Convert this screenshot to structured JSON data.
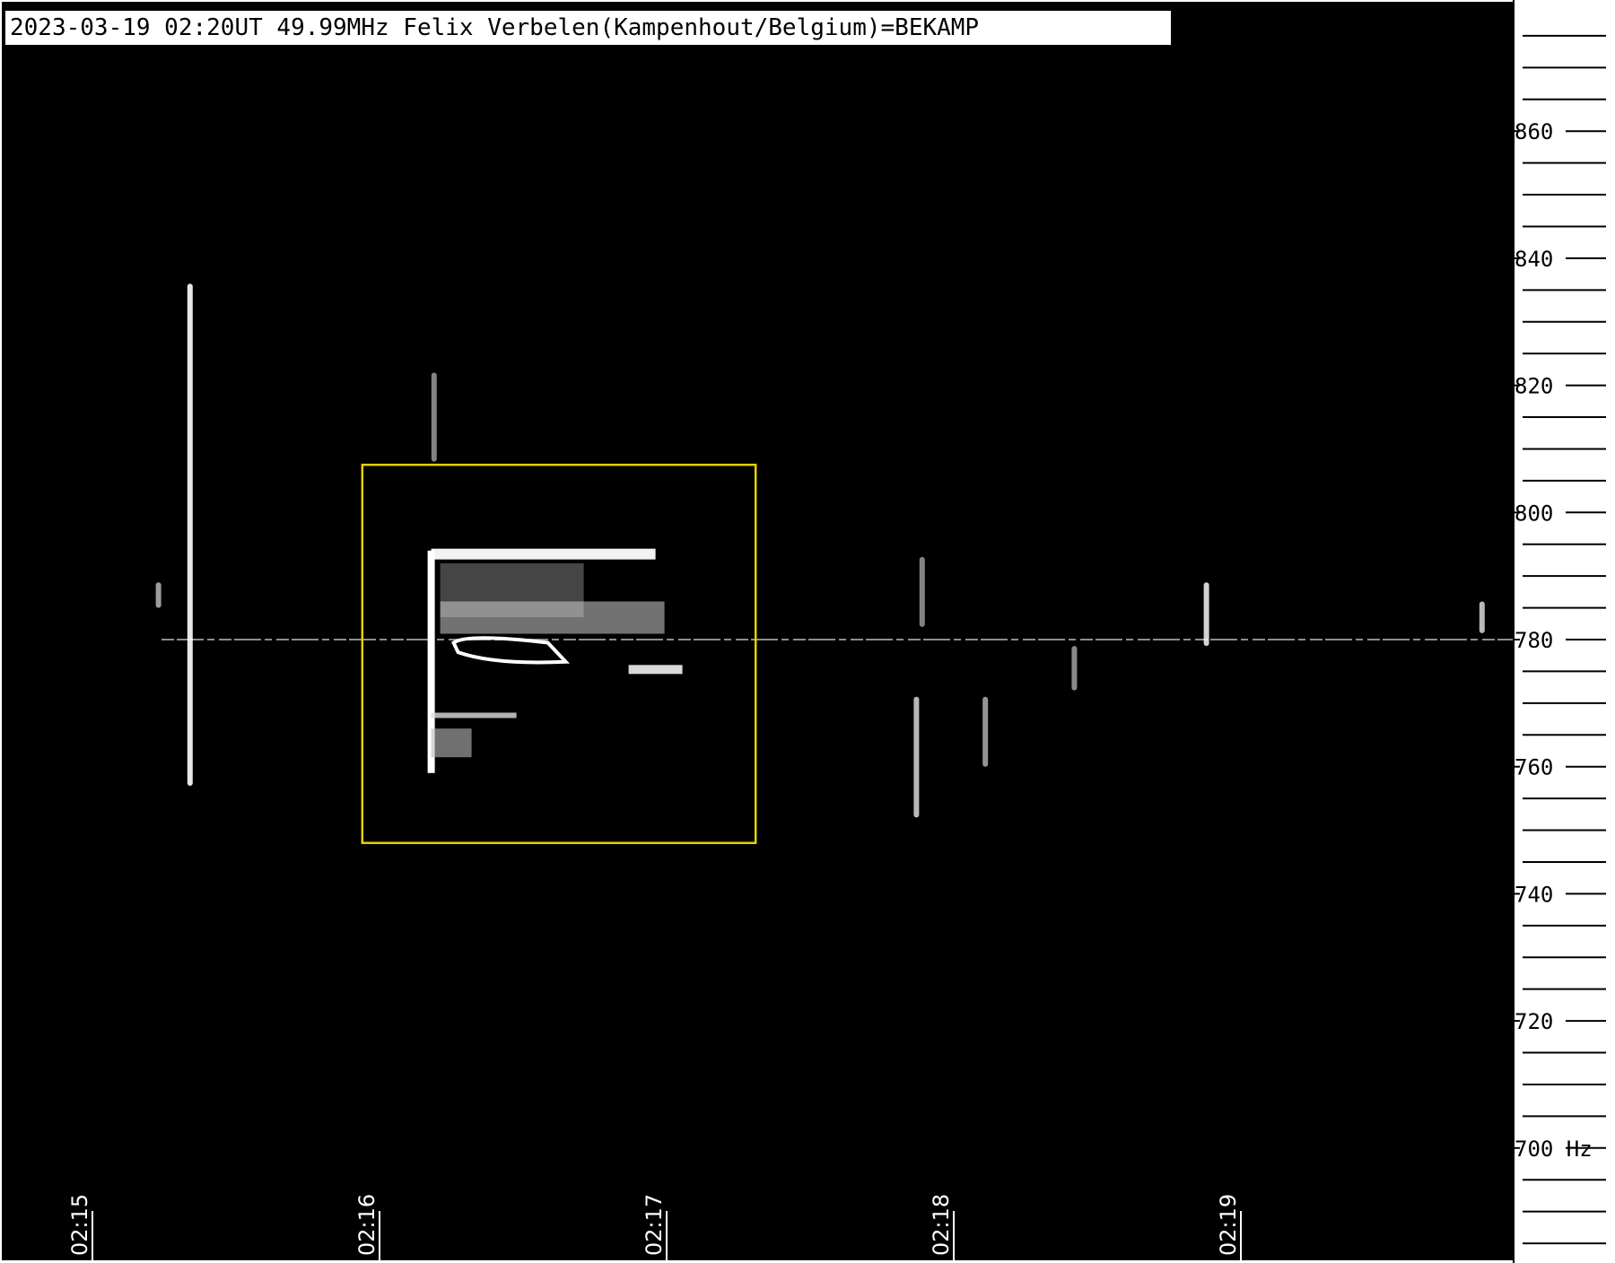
{
  "chart_data": {
    "type": "heatmap",
    "title": "2023-03-19 02:20UT 49.99MHz Felix Verbelen(Kampenhout/Belgium)=BEKAMP",
    "xlabel": "",
    "ylabel": "Hz",
    "y_unit": "Hz",
    "y_ticks": [
      860,
      840,
      820,
      800,
      780,
      760,
      740,
      720,
      700
    ],
    "y_tick_labels": [
      "860",
      "840",
      "820",
      "800",
      "780",
      "760",
      "740",
      "720",
      "700 Hz"
    ],
    "y_minor_step": 5,
    "ylim": [
      680,
      877.5
    ],
    "x_ticks": [
      "02:15",
      "02:16",
      "02:17",
      "02:18",
      "02:19"
    ],
    "x_tick_minutes": [
      15,
      16,
      17,
      18,
      19
    ],
    "xlim_minutes": [
      14.9,
      20.1
    ],
    "carrier_hz": 780,
    "highlight_box": {
      "color": "#e6d200",
      "t_start": 15.94,
      "t_end": 17.31,
      "f_low": 748,
      "f_high": 807.5
    },
    "echoes": [
      {
        "t": 15.34,
        "f_low": 757,
        "f_high": 836,
        "intensity": 0.85
      },
      {
        "t": 15.23,
        "f_low": 785,
        "f_high": 789,
        "intensity": 0.45
      },
      {
        "t": 16.18,
        "f_low": 760,
        "f_high": 794,
        "intensity": 1.0
      },
      {
        "t": 16.19,
        "f_low": 808,
        "f_high": 822,
        "intensity": 0.3
      },
      {
        "t": 17.87,
        "f_low": 752,
        "f_high": 771,
        "intensity": 0.6
      },
      {
        "t": 17.89,
        "f_low": 782,
        "f_high": 793,
        "intensity": 0.3
      },
      {
        "t": 18.11,
        "f_low": 760,
        "f_high": 771,
        "intensity": 0.4
      },
      {
        "t": 18.42,
        "f_low": 772,
        "f_high": 779,
        "intensity": 0.35
      },
      {
        "t": 18.88,
        "f_low": 779,
        "f_high": 789,
        "intensity": 0.75
      },
      {
        "t": 19.84,
        "f_low": 781,
        "f_high": 786,
        "intensity": 0.6
      }
    ]
  },
  "colors": {
    "background": "#000000",
    "axis_panel": "#ffffff",
    "axis_line": "#000000",
    "signal": "#ffffff"
  }
}
